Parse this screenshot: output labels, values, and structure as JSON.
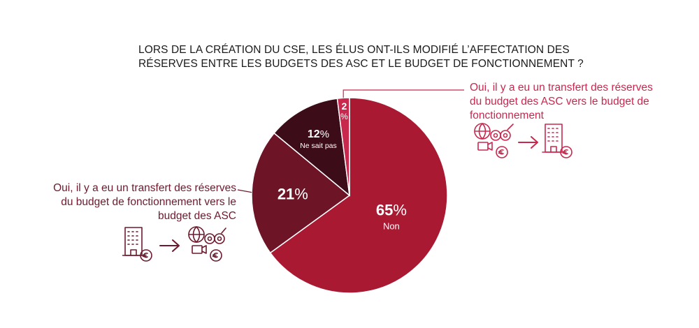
{
  "title": {
    "line1": "LORS DE LA CRÉATION DU CSE, LES ÉLUS ONT-ILS MODIFIÉ L’AFFECTATION DES",
    "line2": "RÉSERVES ENTRE LES BUDGETS DES ASC ET LE BUDGET DE FONCTIONNEMENT ?"
  },
  "chart_data": {
    "type": "pie",
    "title": "LORS DE LA CRÉATION DU CSE, LES ÉLUS ONT-ILS MODIFIÉ L’AFFECTATION DES RÉSERVES ENTRE LES BUDGETS DES ASC ET LE BUDGET DE FONCTIONNEMENT ?",
    "unit": "%",
    "slices": [
      {
        "value": 65,
        "label": "Non",
        "color": "#a91a32"
      },
      {
        "value": 21,
        "label": "Oui, il y a eu un transfert des réserves du budget de fonctionnement vers le budget des ASC",
        "color": "#6d1527"
      },
      {
        "value": 12,
        "label": "Ne sait pas",
        "color": "#3c0d18"
      },
      {
        "value": 2,
        "label": "Oui, il y a eu un transfert des réserves du budget des ASC vers le budget de fonctionnement",
        "color": "#c8284e"
      }
    ]
  },
  "annotations": {
    "right": {
      "lines": [
        "Oui, il y a eu un transfert des réserves",
        "du budget des ASC vers le budget de",
        "fonctionnement"
      ],
      "color": "#c8284e"
    },
    "left": {
      "lines": [
        "Oui, il y a eu un transfert des réserves",
        "du budget de fonctionnement vers le",
        "budget des ASC"
      ],
      "color": "#6d1a2e"
    }
  },
  "icons": {
    "right": [
      "leisure-icon",
      "arrow-right-icon",
      "building-icon"
    ],
    "left": [
      "building-icon",
      "arrow-right-icon",
      "leisure-icon"
    ]
  }
}
